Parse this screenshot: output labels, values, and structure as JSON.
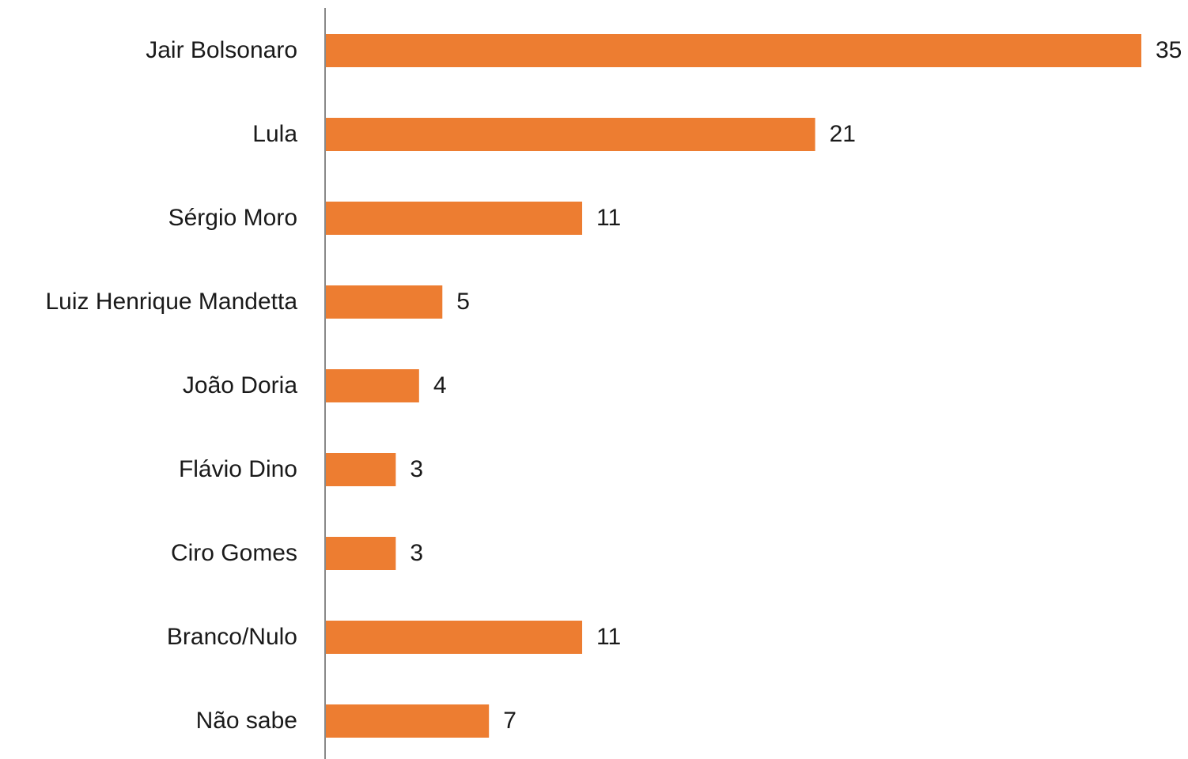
{
  "chart_data": {
    "type": "hbar",
    "categories": [
      "Jair Bolsonaro",
      "Lula",
      "Sérgio Moro",
      "Luiz Henrique Mandetta",
      "João Doria",
      "Flávio Dino",
      "Ciro Gomes",
      "Branco/Nulo",
      "Não sabe"
    ],
    "values": [
      35,
      21,
      11,
      5,
      4,
      3,
      3,
      11,
      7
    ],
    "color": "#ed7d31",
    "xlim": [
      0,
      35
    ]
  }
}
